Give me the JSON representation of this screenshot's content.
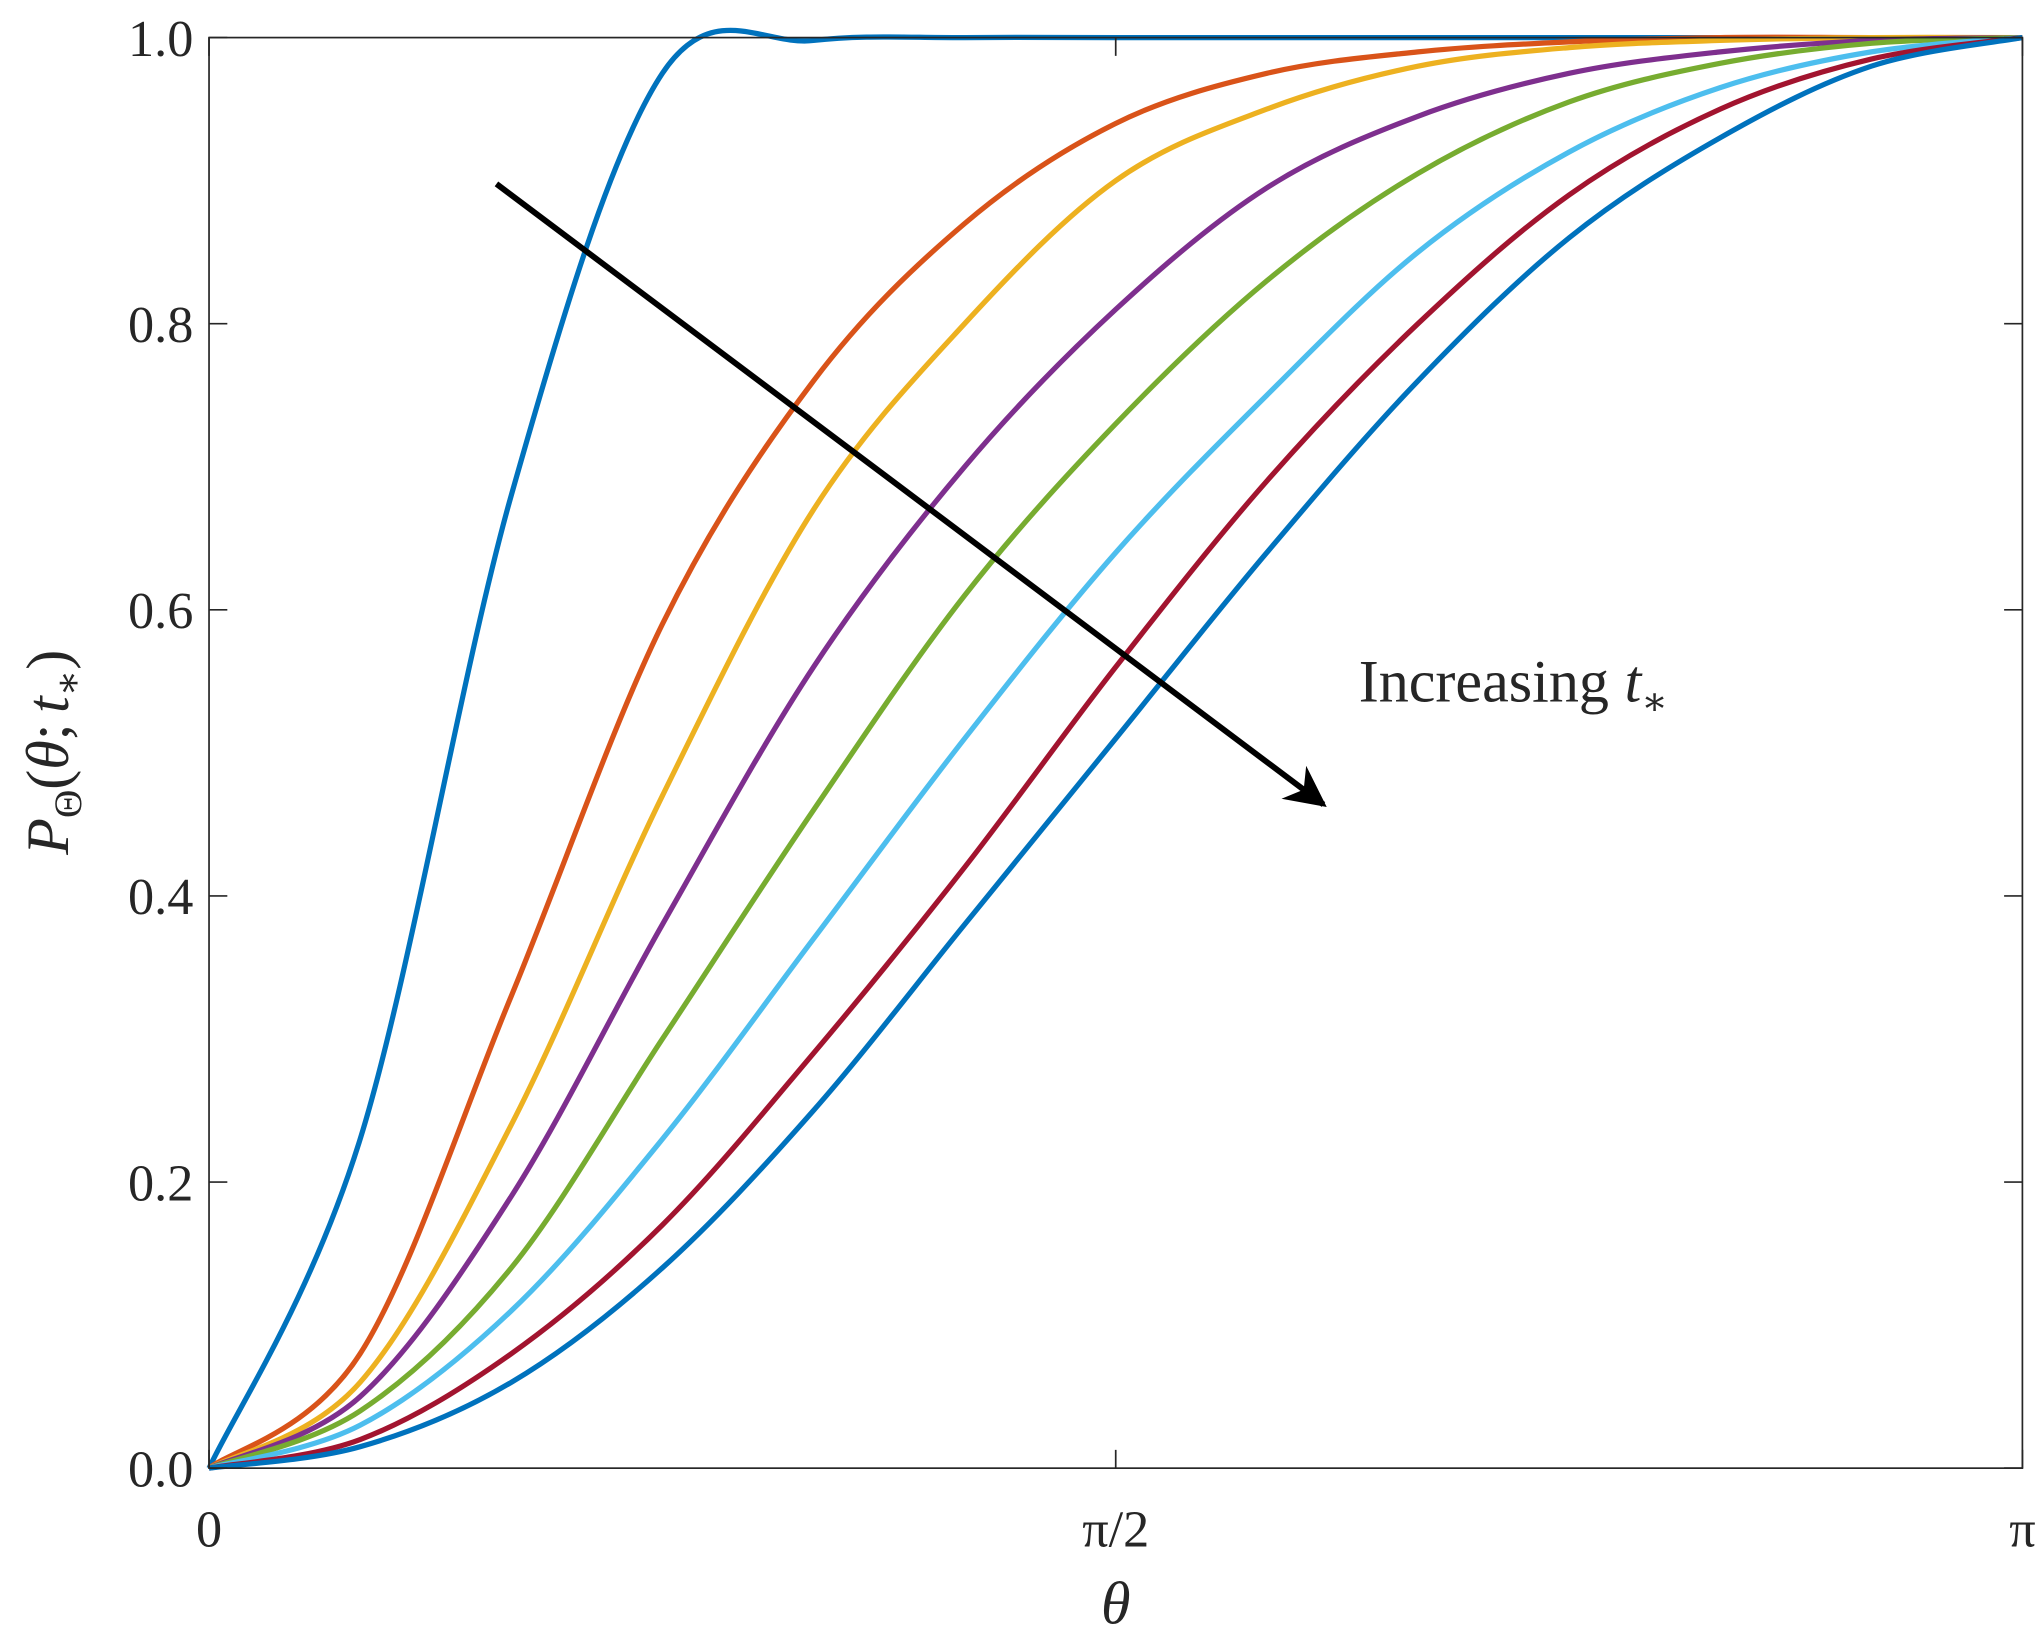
{
  "chart_data": {
    "type": "line",
    "xlabel": "θ",
    "ylabel": {
      "symbol": "P",
      "subscript": "Θ",
      "open": "(",
      "arg1": "θ",
      "sep": ";",
      "arg2": "t",
      "arg2_subscript": "∗",
      "close": ")"
    },
    "annotation": {
      "text": "Increasing",
      "symbol": "t",
      "subscript": "∗"
    },
    "x": [
      0,
      0.2618,
      0.5236,
      0.7854,
      1.0472,
      1.309,
      1.5708,
      1.8326,
      2.0944,
      2.3562,
      2.618,
      2.8798,
      3.1416
    ],
    "xlim": [
      0,
      3.1416
    ],
    "xticks": [
      0,
      {
        "value": 1.5708,
        "label": "π/2"
      },
      {
        "value": 3.1416,
        "label": "π"
      }
    ],
    "ylim": [
      0,
      1
    ],
    "yticks": [
      {
        "value": 0,
        "label": "0.0"
      },
      0.2,
      0.4,
      0.6,
      0.8,
      {
        "value": 1,
        "label": "1.0"
      }
    ],
    "series": [
      {
        "color": "#0072BD",
        "values": [
          0,
          0.23,
          0.68,
          0.975,
          0.998,
          1,
          1,
          1,
          1,
          1,
          1,
          1,
          1
        ]
      },
      {
        "color": "#D95319",
        "values": [
          0,
          0.08,
          0.33,
          0.59,
          0.76,
          0.87,
          0.94,
          0.975,
          0.99,
          0.997,
          1,
          1,
          1
        ]
      },
      {
        "color": "#EDB120",
        "values": [
          0,
          0.06,
          0.24,
          0.47,
          0.67,
          0.8,
          0.9,
          0.95,
          0.98,
          0.993,
          0.998,
          1,
          1
        ]
      },
      {
        "color": "#7E2F8E",
        "values": [
          0,
          0.05,
          0.19,
          0.38,
          0.56,
          0.7,
          0.81,
          0.895,
          0.945,
          0.975,
          0.99,
          0.998,
          1
        ]
      },
      {
        "color": "#77AC30",
        "values": [
          0,
          0.04,
          0.14,
          0.3,
          0.46,
          0.61,
          0.73,
          0.83,
          0.905,
          0.955,
          0.982,
          0.996,
          1
        ]
      },
      {
        "color": "#4DBEEE",
        "values": [
          0,
          0.03,
          0.11,
          0.23,
          0.37,
          0.51,
          0.64,
          0.75,
          0.85,
          0.92,
          0.965,
          0.99,
          1
        ]
      },
      {
        "color": "#A2142F",
        "values": [
          0,
          0.02,
          0.08,
          0.17,
          0.29,
          0.42,
          0.56,
          0.69,
          0.8,
          0.89,
          0.95,
          0.985,
          1
        ]
      },
      {
        "color": "#0072BD",
        "values": [
          0,
          0.015,
          0.06,
          0.14,
          0.25,
          0.38,
          0.51,
          0.64,
          0.76,
          0.86,
          0.93,
          0.98,
          1
        ]
      }
    ]
  }
}
